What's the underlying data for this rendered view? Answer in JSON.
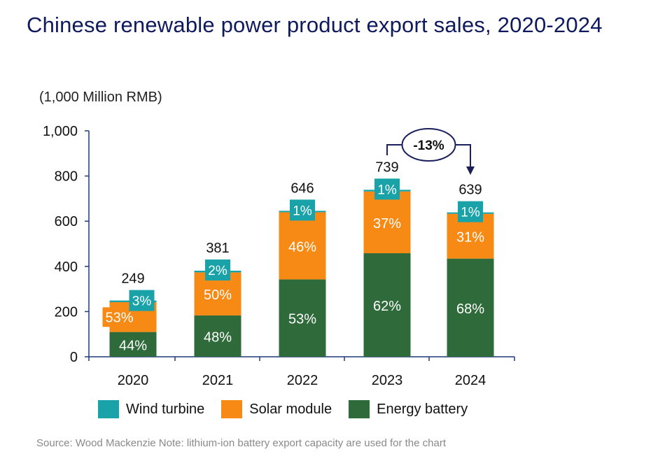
{
  "title": "Chinese renewable power product export sales, 2020-2024",
  "colors": {
    "wind": "#19a3a8",
    "solar": "#f68a14",
    "battery": "#2f6b3a",
    "axis": "#1f3a7a",
    "title": "#0f1a5c"
  },
  "chart_data": {
    "type": "bar",
    "stacked": true,
    "unit_label": "(1,000 Million RMB)",
    "categories": [
      "2020",
      "2021",
      "2022",
      "2023",
      "2024"
    ],
    "ylim": [
      0,
      1000
    ],
    "yticks": [
      0,
      200,
      400,
      600,
      800,
      1000
    ],
    "ytick_labels": [
      "0",
      "200",
      "400",
      "600",
      "800",
      "1,000"
    ],
    "totals": [
      249,
      381,
      646,
      739,
      639
    ],
    "total_labels": [
      "249",
      "381",
      "646",
      "739",
      "639"
    ],
    "series": [
      {
        "name": "Energy battery",
        "key": "battery",
        "shares": [
          44,
          48,
          53,
          62,
          68
        ],
        "labels": [
          "44%",
          "48%",
          "53%",
          "62%",
          "68%"
        ]
      },
      {
        "name": "Solar module",
        "key": "solar",
        "shares": [
          53,
          50,
          46,
          37,
          31
        ],
        "labels": [
          "53%",
          "50%",
          "46%",
          "37%",
          "31%"
        ]
      },
      {
        "name": "Wind turbine",
        "key": "wind",
        "shares": [
          3,
          2,
          1,
          1,
          1
        ],
        "labels": [
          "3%",
          "2%",
          "1%",
          "1%",
          "1%"
        ]
      }
    ],
    "annotation": {
      "text": "-13%",
      "from": "2023",
      "to": "2024"
    }
  },
  "legend": [
    {
      "name": "Wind turbine",
      "key": "wind"
    },
    {
      "name": "Solar module",
      "key": "solar"
    },
    {
      "name": "Energy battery",
      "key": "battery"
    }
  ],
  "source": "Source: Wood Mackenzie Note: lithium-ion battery export capacity are used for the chart"
}
